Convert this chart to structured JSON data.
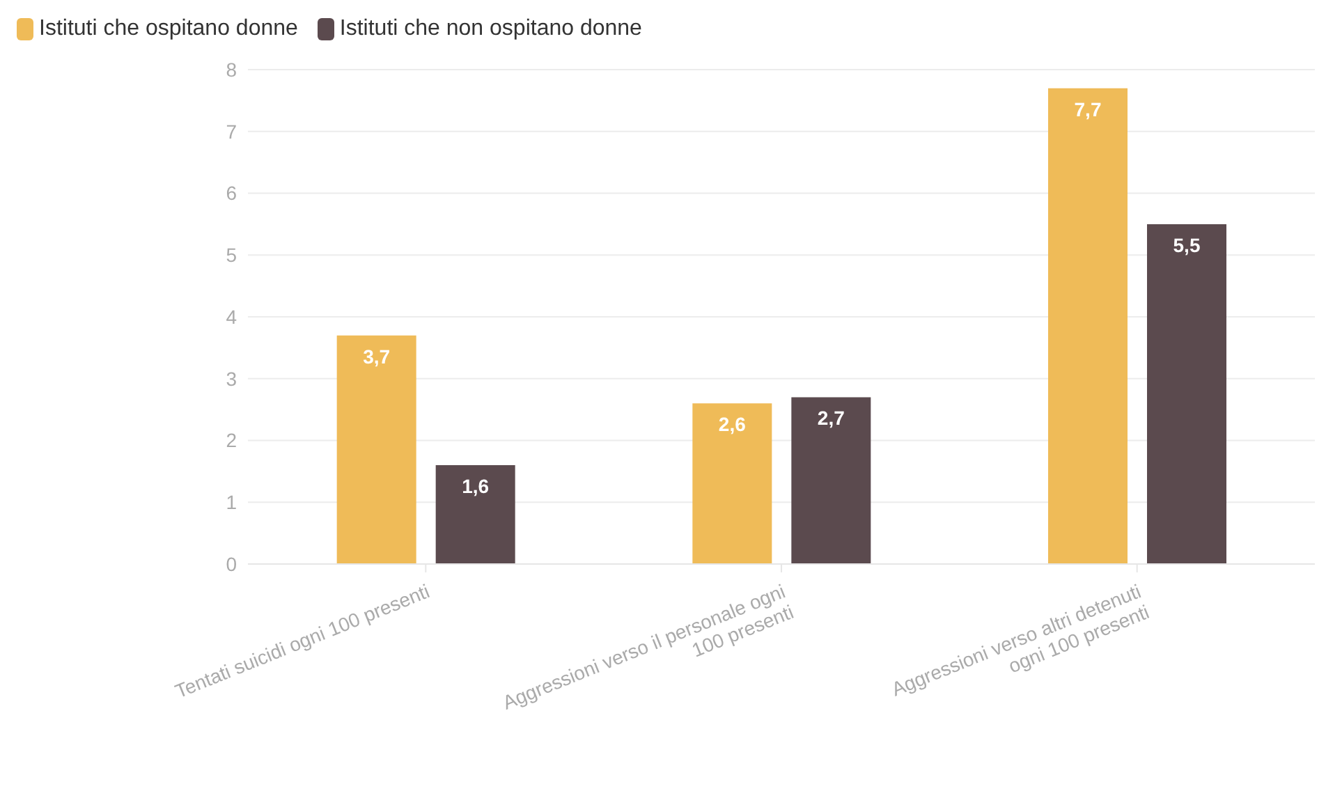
{
  "chart_data": {
    "type": "bar",
    "categories": [
      "Tentati suicidi ogni 100 presenti",
      "Aggressioni verso il personale ogni 100 presenti",
      "Aggressioni verso altri detenuti ogni 100 presenti"
    ],
    "series": [
      {
        "name": "Istituti che ospitano donne",
        "color": "#efbb58",
        "values": [
          3.7,
          2.6,
          7.7
        ],
        "value_labels": [
          "3,7",
          "2,6",
          "7,7"
        ]
      },
      {
        "name": "Istituti che non ospitano donne",
        "color": "#5b4a4e",
        "values": [
          1.6,
          2.7,
          5.5
        ],
        "value_labels": [
          "1,6",
          "2,7",
          "5,5"
        ]
      }
    ],
    "ylim": [
      0,
      8
    ],
    "yticks": [
      0,
      1,
      2,
      3,
      4,
      5,
      6,
      7,
      8
    ],
    "grid": "y",
    "legend": "top left"
  }
}
